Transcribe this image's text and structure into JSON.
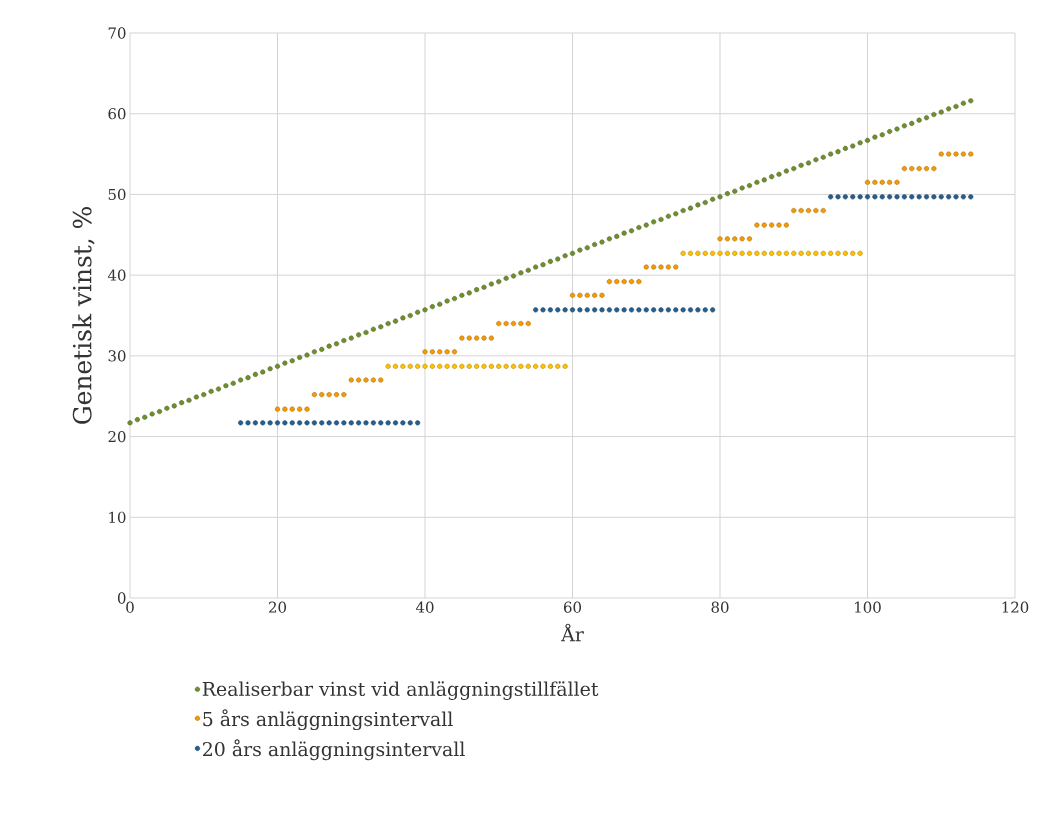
{
  "chart_data": {
    "type": "scatter",
    "xlabel": "År",
    "ylabel": "Genetisk vinst, %",
    "x": [
      0,
      1,
      2,
      3,
      4,
      5,
      6,
      7,
      8,
      9,
      10,
      11,
      12,
      13,
      14,
      15,
      16,
      17,
      18,
      19,
      20,
      21,
      22,
      23,
      24,
      25,
      26,
      27,
      28,
      29,
      30,
      31,
      32,
      33,
      34,
      35,
      36,
      37,
      38,
      39,
      40,
      41,
      42,
      43,
      44,
      45,
      46,
      47,
      48,
      49,
      50,
      51,
      52,
      53,
      54,
      55,
      56,
      57,
      58,
      59,
      60,
      61,
      62,
      63,
      64,
      65,
      66,
      67,
      68,
      69,
      70,
      71,
      72,
      73,
      74,
      75,
      76,
      77,
      78,
      79,
      80,
      81,
      82,
      83,
      84,
      85,
      86,
      87,
      88,
      89,
      90,
      91,
      92,
      93,
      94,
      95,
      96,
      97,
      98,
      99,
      100,
      101,
      102,
      103,
      104,
      105,
      106,
      107,
      108,
      109,
      110,
      111,
      112,
      113,
      114
    ],
    "series": [
      {
        "name": "Realiserbar vinst vid anläggningstillfället",
        "color": "#6f8f2f",
        "values": [
          21.7,
          22.1,
          22.4,
          22.8,
          23.1,
          23.5,
          23.8,
          24.2,
          24.5,
          24.9,
          25.2,
          25.6,
          25.9,
          26.3,
          26.6,
          27.0,
          27.3,
          27.7,
          28.0,
          28.4,
          28.7,
          29.1,
          29.4,
          29.8,
          30.1,
          30.5,
          30.8,
          31.2,
          31.5,
          31.9,
          32.2,
          32.6,
          32.9,
          33.3,
          33.6,
          34.0,
          34.3,
          34.7,
          35.0,
          35.4,
          35.7,
          36.1,
          36.4,
          36.8,
          37.1,
          37.5,
          37.8,
          38.2,
          38.5,
          38.9,
          39.2,
          39.6,
          39.9,
          40.3,
          40.6,
          41.0,
          41.3,
          41.7,
          42.0,
          42.4,
          42.7,
          43.1,
          43.4,
          43.8,
          44.1,
          44.5,
          44.8,
          45.2,
          45.5,
          45.9,
          46.2,
          46.6,
          46.9,
          47.3,
          47.6,
          48.0,
          48.3,
          48.7,
          49.0,
          49.4,
          49.7,
          50.1,
          50.4,
          50.8,
          51.1,
          51.5,
          51.8,
          52.2,
          52.5,
          52.9,
          53.2,
          53.6,
          53.9,
          54.3,
          54.6,
          55.0,
          55.3,
          55.7,
          56.0,
          56.4,
          56.7,
          57.1,
          57.4,
          57.8,
          58.1,
          58.5,
          58.8,
          59.2,
          59.5,
          59.9,
          60.2,
          60.6,
          60.9,
          61.3,
          61.6
        ]
      },
      {
        "name": "5 års anläggningsintervall",
        "color": "#f59a00",
        "values": [
          null,
          null,
          null,
          null,
          null,
          null,
          null,
          null,
          null,
          null,
          null,
          null,
          null,
          null,
          null,
          null,
          null,
          null,
          null,
          null,
          23.4,
          23.4,
          23.4,
          23.4,
          23.4,
          25.2,
          25.2,
          25.2,
          25.2,
          25.2,
          27.0,
          27.0,
          27.0,
          27.0,
          27.0,
          null,
          null,
          null,
          null,
          null,
          30.5,
          30.5,
          30.5,
          30.5,
          30.5,
          32.2,
          32.2,
          32.2,
          32.2,
          32.2,
          34.0,
          34.0,
          34.0,
          34.0,
          34.0,
          null,
          null,
          null,
          null,
          null,
          37.5,
          37.5,
          37.5,
          37.5,
          37.5,
          39.2,
          39.2,
          39.2,
          39.2,
          39.2,
          41.0,
          41.0,
          41.0,
          41.0,
          41.0,
          null,
          null,
          null,
          null,
          null,
          44.5,
          44.5,
          44.5,
          44.5,
          44.5,
          46.2,
          46.2,
          46.2,
          46.2,
          46.2,
          48.0,
          48.0,
          48.0,
          48.0,
          48.0,
          null,
          null,
          null,
          null,
          null,
          51.5,
          51.5,
          51.5,
          51.5,
          51.5,
          53.2,
          53.2,
          53.2,
          53.2,
          53.2,
          55.0,
          55.0,
          55.0,
          55.0,
          55.0
        ]
      },
      {
        "color": "#ffc000",
        "values": [
          null,
          null,
          null,
          null,
          null,
          null,
          null,
          null,
          null,
          null,
          null,
          null,
          null,
          null,
          null,
          null,
          null,
          null,
          null,
          null,
          null,
          null,
          null,
          null,
          null,
          null,
          null,
          null,
          null,
          null,
          null,
          null,
          null,
          null,
          null,
          28.7,
          28.7,
          28.7,
          28.7,
          28.7,
          28.7,
          28.7,
          28.7,
          28.7,
          28.7,
          28.7,
          28.7,
          28.7,
          28.7,
          28.7,
          28.7,
          28.7,
          28.7,
          28.7,
          28.7,
          28.7,
          28.7,
          28.7,
          28.7,
          28.7,
          null,
          null,
          null,
          null,
          null,
          null,
          null,
          null,
          null,
          null,
          null,
          null,
          null,
          null,
          null,
          42.7,
          42.7,
          42.7,
          42.7,
          42.7,
          42.7,
          42.7,
          42.7,
          42.7,
          42.7,
          42.7,
          42.7,
          42.7,
          42.7,
          42.7,
          42.7,
          42.7,
          42.7,
          42.7,
          42.7,
          42.7,
          42.7,
          42.7,
          42.7,
          42.7,
          null,
          null,
          null,
          null,
          null,
          null,
          null,
          null,
          null,
          null,
          null,
          null,
          null,
          null,
          null
        ]
      },
      {
        "name": "20 års anläggningsintervall",
        "color": "#255e91",
        "values": [
          null,
          null,
          null,
          null,
          null,
          null,
          null,
          null,
          null,
          null,
          null,
          null,
          null,
          null,
          null,
          21.7,
          21.7,
          21.7,
          21.7,
          21.7,
          21.7,
          21.7,
          21.7,
          21.7,
          21.7,
          21.7,
          21.7,
          21.7,
          21.7,
          21.7,
          21.7,
          21.7,
          21.7,
          21.7,
          21.7,
          21.7,
          21.7,
          21.7,
          21.7,
          21.7,
          null,
          null,
          null,
          null,
          null,
          null,
          null,
          null,
          null,
          null,
          null,
          null,
          null,
          null,
          null,
          35.7,
          35.7,
          35.7,
          35.7,
          35.7,
          35.7,
          35.7,
          35.7,
          35.7,
          35.7,
          35.7,
          35.7,
          35.7,
          35.7,
          35.7,
          35.7,
          35.7,
          35.7,
          35.7,
          35.7,
          35.7,
          35.7,
          35.7,
          35.7,
          35.7,
          null,
          null,
          null,
          null,
          null,
          null,
          null,
          null,
          null,
          null,
          null,
          null,
          null,
          null,
          null,
          49.7,
          49.7,
          49.7,
          49.7,
          49.7,
          49.7,
          49.7,
          49.7,
          49.7,
          49.7,
          49.7,
          49.7,
          49.7,
          49.7,
          49.7,
          49.7,
          49.7,
          49.7,
          49.7,
          49.7
        ]
      }
    ],
    "xlim": [
      0,
      120
    ],
    "xticks": [
      0,
      20,
      40,
      60,
      80,
      100,
      120
    ],
    "ylim": [
      0,
      70
    ],
    "yticks": [
      0,
      10,
      20,
      30,
      40,
      50,
      60,
      70
    ],
    "grid": true,
    "legend": "bottom",
    "marker": "circle"
  }
}
